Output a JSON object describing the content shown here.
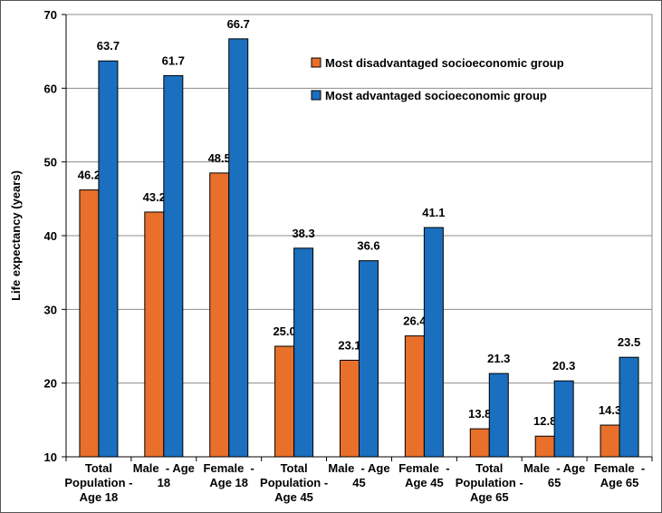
{
  "chart_data": {
    "type": "bar",
    "title": "",
    "xlabel": "",
    "ylabel": "Life expectancy (years)",
    "ylim": [
      10,
      70
    ],
    "yticks": [
      10,
      20,
      30,
      40,
      50,
      60,
      70
    ],
    "grid": true,
    "legend_position": "top-right",
    "categories": [
      [
        "Total",
        "Population -",
        "Age 18"
      ],
      [
        "Male  - Age",
        "18"
      ],
      [
        "Female  -",
        "Age 18"
      ],
      [
        "Total",
        "Population -",
        "Age 45"
      ],
      [
        "Male  - Age",
        "45"
      ],
      [
        "Female  -",
        "Age 45"
      ],
      [
        "Total",
        "Population -",
        "Age 65"
      ],
      [
        "Male  - Age",
        "65"
      ],
      [
        "Female  -",
        "Age 65"
      ]
    ],
    "series": [
      {
        "name": "Most disadvantaged socioeconomic group",
        "color": "#E8702A",
        "values": [
          46.2,
          43.2,
          48.5,
          25.0,
          23.1,
          26.4,
          13.8,
          12.8,
          14.3
        ],
        "labels": [
          "46.2",
          "43.2",
          "48.5",
          "25.0",
          "23.1",
          "26.4",
          "13.8",
          "12.8",
          "14.3"
        ]
      },
      {
        "name": "Most advantaged socioeconomic group",
        "color": "#1A6FBF",
        "values": [
          63.7,
          61.7,
          66.7,
          38.3,
          36.6,
          41.1,
          21.3,
          20.3,
          23.5
        ],
        "labels": [
          "63.7",
          "61.7",
          "66.7",
          "38.3",
          "36.6",
          "41.1",
          "21.3",
          "20.3",
          "23.5"
        ]
      }
    ]
  }
}
